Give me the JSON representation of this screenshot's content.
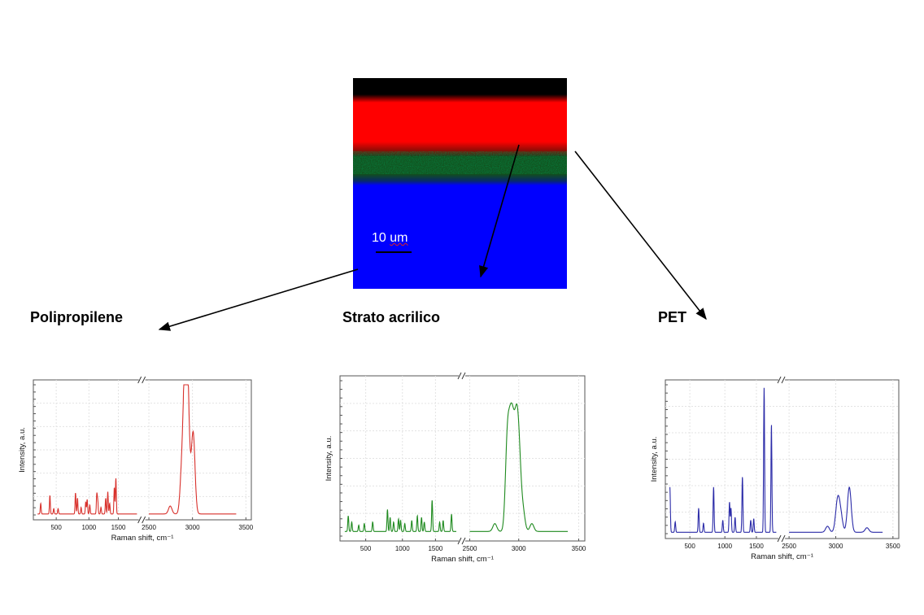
{
  "map": {
    "scale_number": "10",
    "scale_unit": "um",
    "colors": {
      "top": "#000000",
      "red_layer": "#ff0000",
      "green_layer": "#124f1c",
      "blue_layer": "#0000ff"
    }
  },
  "layers": [
    {
      "name": "Polipropilene",
      "color": "#d8312c"
    },
    {
      "name": "Strato acrilico",
      "color": "#1f8a1f"
    },
    {
      "name": "PET",
      "color": "#2b2ba8"
    }
  ],
  "chart_data": [
    {
      "type": "line",
      "layer": "Polipropilene",
      "xlabel": "Raman shift, cm⁻¹",
      "ylabel": "Intensity, a.u.",
      "xticks": [
        "500",
        "1000",
        "1500",
        "2500",
        "3000",
        "3500"
      ],
      "axis_break": true,
      "grid": true,
      "color": "#d8312c",
      "baseline": 0.02,
      "peaks": [
        {
          "x": 250,
          "h": 0.08
        },
        {
          "x": 398,
          "h": 0.14
        },
        {
          "x": 460,
          "h": 0.04
        },
        {
          "x": 530,
          "h": 0.04
        },
        {
          "x": 810,
          "h": 0.16
        },
        {
          "x": 842,
          "h": 0.12
        },
        {
          "x": 900,
          "h": 0.05
        },
        {
          "x": 975,
          "h": 0.09
        },
        {
          "x": 998,
          "h": 0.11
        },
        {
          "x": 1040,
          "h": 0.07
        },
        {
          "x": 1153,
          "h": 0.15
        },
        {
          "x": 1168,
          "h": 0.1
        },
        {
          "x": 1220,
          "h": 0.05
        },
        {
          "x": 1296,
          "h": 0.12
        },
        {
          "x": 1330,
          "h": 0.17
        },
        {
          "x": 1360,
          "h": 0.08
        },
        {
          "x": 1435,
          "h": 0.2
        },
        {
          "x": 1460,
          "h": 0.27
        },
        {
          "x": 2720,
          "h": 0.06
        },
        {
          "x": 2840,
          "h": 0.32
        },
        {
          "x": 2870,
          "h": 0.58
        },
        {
          "x": 2884,
          "h": 0.82
        },
        {
          "x": 2905,
          "h": 0.55
        },
        {
          "x": 2952,
          "h": 0.36
        },
        {
          "x": 2962,
          "h": 0.28
        }
      ]
    },
    {
      "type": "line",
      "layer": "Strato acrilico",
      "xlabel": "Raman shift, cm⁻¹",
      "ylabel": "Intensity, a.u.",
      "xticks": [
        "500",
        "1000",
        "1500",
        "2500",
        "3000",
        "3500"
      ],
      "axis_break": true,
      "grid": true,
      "color": "#1f8a1f",
      "baseline": 0.04,
      "peaks": [
        {
          "x": 250,
          "h": 0.1
        },
        {
          "x": 300,
          "h": 0.06
        },
        {
          "x": 400,
          "h": 0.04
        },
        {
          "x": 480,
          "h": 0.05
        },
        {
          "x": 600,
          "h": 0.06
        },
        {
          "x": 812,
          "h": 0.14
        },
        {
          "x": 850,
          "h": 0.09
        },
        {
          "x": 900,
          "h": 0.06
        },
        {
          "x": 970,
          "h": 0.08
        },
        {
          "x": 1000,
          "h": 0.07
        },
        {
          "x": 1060,
          "h": 0.05
        },
        {
          "x": 1160,
          "h": 0.07
        },
        {
          "x": 1240,
          "h": 0.1
        },
        {
          "x": 1300,
          "h": 0.09
        },
        {
          "x": 1340,
          "h": 0.06
        },
        {
          "x": 1452,
          "h": 0.2
        },
        {
          "x": 1560,
          "h": 0.06
        },
        {
          "x": 1610,
          "h": 0.07
        },
        {
          "x": 1730,
          "h": 0.11
        },
        {
          "x": 2730,
          "h": 0.05
        },
        {
          "x": 2845,
          "h": 0.55
        },
        {
          "x": 2875,
          "h": 0.5
        },
        {
          "x": 2900,
          "h": 0.45
        },
        {
          "x": 2930,
          "h": 0.55
        },
        {
          "x": 2955,
          "h": 0.38
        },
        {
          "x": 2990,
          "h": 0.12
        },
        {
          "x": 3070,
          "h": 0.05
        }
      ]
    },
    {
      "type": "line",
      "layer": "PET",
      "xlabel": "Raman shift, cm⁻¹",
      "ylabel": "Intensity, a.u.",
      "xticks": [
        "500",
        "1000",
        "1500",
        "2500",
        "3000",
        "3500"
      ],
      "axis_break": true,
      "grid": true,
      "color": "#2b2ba8",
      "baseline": 0.02,
      "peaks": [
        {
          "x": 200,
          "h": 0.3
        },
        {
          "x": 280,
          "h": 0.07
        },
        {
          "x": 632,
          "h": 0.16
        },
        {
          "x": 705,
          "h": 0.06
        },
        {
          "x": 857,
          "h": 0.3
        },
        {
          "x": 995,
          "h": 0.08
        },
        {
          "x": 1096,
          "h": 0.2
        },
        {
          "x": 1118,
          "h": 0.16
        },
        {
          "x": 1180,
          "h": 0.1
        },
        {
          "x": 1290,
          "h": 0.37
        },
        {
          "x": 1415,
          "h": 0.08
        },
        {
          "x": 1460,
          "h": 0.09
        },
        {
          "x": 1616,
          "h": 0.96
        },
        {
          "x": 1726,
          "h": 0.72
        },
        {
          "x": 2870,
          "h": 0.04
        },
        {
          "x": 2960,
          "h": 0.1
        },
        {
          "x": 2975,
          "h": 0.14
        },
        {
          "x": 3000,
          "h": 0.09
        },
        {
          "x": 3080,
          "h": 0.3
        },
        {
          "x": 3250,
          "h": 0.03
        }
      ]
    }
  ]
}
